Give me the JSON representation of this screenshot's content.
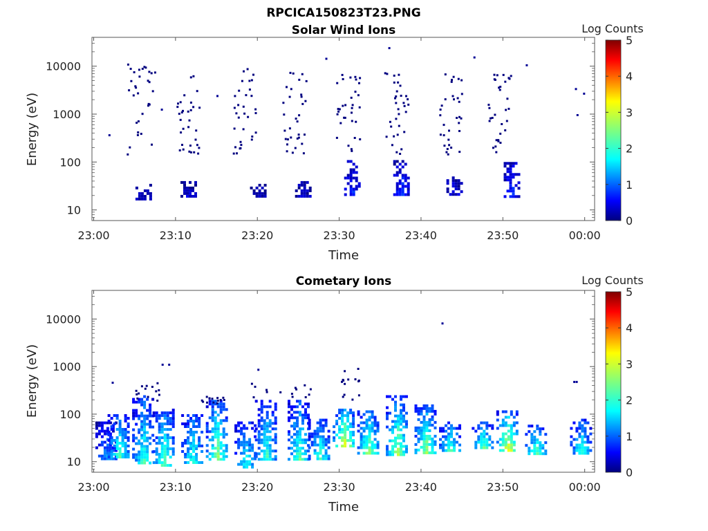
{
  "figure": {
    "title": "RPCICA150823T23.PNG"
  },
  "colorscale": [
    "#00007f",
    "#0000ff",
    "#007fff",
    "#00ffff",
    "#7fff7f",
    "#ffff00",
    "#ff7f00",
    "#ff0000",
    "#7f0000"
  ],
  "chart_data": [
    {
      "type": "heatmap",
      "title": "Solar Wind Ions",
      "xlabel": "Time",
      "ylabel": "Energy (eV)",
      "yscale": "log",
      "ylim": [
        6,
        40000
      ],
      "xlim": [
        "23:00",
        "00:01"
      ],
      "xticks": [
        "23:00",
        "23:10",
        "23:20",
        "23:30",
        "23:40",
        "23:50",
        "00:00"
      ],
      "yticks": [
        "10",
        "100",
        "1000",
        "10000"
      ],
      "colorbar": {
        "label": "Log Counts",
        "range": [
          0,
          5
        ],
        "ticks": [
          "0",
          "1",
          "2",
          "3",
          "4",
          "5"
        ]
      },
      "clusters": [
        {
          "t": 6.0,
          "e_low": 18,
          "e_high": 35,
          "v": 0.3
        },
        {
          "t": 11.5,
          "e_low": 20,
          "e_high": 40,
          "v": 0.3
        },
        {
          "t": 20.0,
          "e_low": 20,
          "e_high": 40,
          "v": 0.3
        },
        {
          "t": 25.5,
          "e_low": 20,
          "e_high": 40,
          "v": 0.3
        },
        {
          "t": 31.5,
          "e_low": 20,
          "e_high": 110,
          "v": 0.6
        },
        {
          "t": 37.5,
          "e_low": 20,
          "e_high": 110,
          "v": 0.7
        },
        {
          "t": 44.0,
          "e_low": 20,
          "e_high": 50,
          "v": 0.4
        },
        {
          "t": 51.0,
          "e_low": 20,
          "e_high": 100,
          "v": 0.6
        }
      ],
      "scatter_groups": [
        {
          "t_min": 4.0,
          "t_max": 7.5,
          "e_min": 150,
          "e_max": 13000
        },
        {
          "t_min": 10.0,
          "t_max": 13.0,
          "e_min": 150,
          "e_max": 10000
        },
        {
          "t_min": 17.0,
          "t_max": 20.0,
          "e_min": 150,
          "e_max": 10000
        },
        {
          "t_min": 23.0,
          "t_max": 26.0,
          "e_min": 150,
          "e_max": 10000
        },
        {
          "t_min": 29.5,
          "t_max": 32.5,
          "e_min": 150,
          "e_max": 7000
        },
        {
          "t_min": 35.5,
          "t_max": 38.5,
          "e_min": 150,
          "e_max": 10000
        },
        {
          "t_min": 42.0,
          "t_max": 45.0,
          "e_min": 150,
          "e_max": 8000
        },
        {
          "t_min": 48.0,
          "t_max": 51.0,
          "e_min": 150,
          "e_max": 8000
        }
      ],
      "isolated_points": [
        {
          "t": 1.8,
          "e": 380,
          "v": 0.1
        },
        {
          "t": 8.2,
          "e": 1300,
          "v": 0.1
        },
        {
          "t": 15.0,
          "e": 2500,
          "v": 0.1
        },
        {
          "t": 28.3,
          "e": 15000,
          "v": 0.1
        },
        {
          "t": 36.0,
          "e": 25000,
          "v": 0.1
        },
        {
          "t": 46.4,
          "e": 16000,
          "v": 0.1
        },
        {
          "t": 52.8,
          "e": 11000,
          "v": 0.1
        },
        {
          "t": 58.8,
          "e": 3500,
          "v": 0.1
        },
        {
          "t": 59.0,
          "e": 1000,
          "v": 0.1
        },
        {
          "t": 59.8,
          "e": 2800,
          "v": 0.1
        }
      ]
    },
    {
      "type": "heatmap",
      "title": "Cometary Ions",
      "xlabel": "Time",
      "ylabel": "Energy (eV)",
      "yscale": "log",
      "ylim": [
        6,
        40000
      ],
      "xlim": [
        "23:00",
        "00:01"
      ],
      "xticks": [
        "23:00",
        "23:10",
        "23:20",
        "23:30",
        "23:40",
        "23:50",
        "00:00"
      ],
      "yticks": [
        "10",
        "100",
        "1000",
        "10000"
      ],
      "colorbar": {
        "label": "Log Counts",
        "range": [
          0,
          5
        ],
        "ticks": [
          "0",
          "1",
          "2",
          "3",
          "4",
          "5"
        ]
      },
      "clusters": [
        {
          "t": 1.5,
          "e_low": 12,
          "e_high": 70,
          "v": 1.0
        },
        {
          "t": 3.0,
          "e_low": 12,
          "e_high": 100,
          "v": 1.7
        },
        {
          "t": 6.0,
          "e_low": 10,
          "e_high": 250,
          "v": 1.6
        },
        {
          "t": 8.5,
          "e_low": 8,
          "e_high": 130,
          "v": 1.8
        },
        {
          "t": 12.0,
          "e_low": 10,
          "e_high": 100,
          "v": 1.6
        },
        {
          "t": 15.0,
          "e_low": 12,
          "e_high": 200,
          "v": 1.9
        },
        {
          "t": 18.5,
          "e_low": 8,
          "e_high": 70,
          "v": 1.5
        },
        {
          "t": 21.0,
          "e_low": 12,
          "e_high": 200,
          "v": 1.6
        },
        {
          "t": 25.0,
          "e_low": 12,
          "e_high": 200,
          "v": 1.7
        },
        {
          "t": 27.5,
          "e_low": 12,
          "e_high": 80,
          "v": 1.6
        },
        {
          "t": 30.5,
          "e_low": 20,
          "e_high": 130,
          "v": 2.4
        },
        {
          "t": 33.5,
          "e_low": 15,
          "e_high": 120,
          "v": 2.0
        },
        {
          "t": 37.0,
          "e_low": 15,
          "e_high": 250,
          "v": 2.0
        },
        {
          "t": 40.5,
          "e_low": 15,
          "e_high": 160,
          "v": 2.0
        },
        {
          "t": 43.5,
          "e_low": 18,
          "e_high": 70,
          "v": 1.7
        },
        {
          "t": 47.5,
          "e_low": 20,
          "e_high": 70,
          "v": 1.8
        },
        {
          "t": 50.5,
          "e_low": 18,
          "e_high": 120,
          "v": 2.3
        },
        {
          "t": 54.0,
          "e_low": 15,
          "e_high": 60,
          "v": 1.8
        },
        {
          "t": 59.5,
          "e_low": 15,
          "e_high": 80,
          "v": 1.6
        }
      ],
      "scatter_groups": [
        {
          "t_min": 5.0,
          "t_max": 8.0,
          "e_min": 200,
          "e_max": 500
        },
        {
          "t_min": 19.0,
          "t_max": 27.0,
          "e_min": 200,
          "e_max": 500
        },
        {
          "t_min": 30.0,
          "t_max": 32.5,
          "e_min": 200,
          "e_max": 1000
        },
        {
          "t_min": 13.0,
          "t_max": 16.0,
          "e_min": 150,
          "e_max": 250
        }
      ],
      "isolated_points": [
        {
          "t": 2.2,
          "e": 480,
          "v": 0.1
        },
        {
          "t": 8.3,
          "e": 1150,
          "v": 0.1
        },
        {
          "t": 9.1,
          "e": 1150,
          "v": 0.1
        },
        {
          "t": 20.0,
          "e": 900,
          "v": 0.1
        },
        {
          "t": 42.5,
          "e": 8500,
          "v": 0.1
        },
        {
          "t": 58.6,
          "e": 500,
          "v": 0.1
        },
        {
          "t": 58.9,
          "e": 500,
          "v": 0.1
        }
      ]
    }
  ]
}
